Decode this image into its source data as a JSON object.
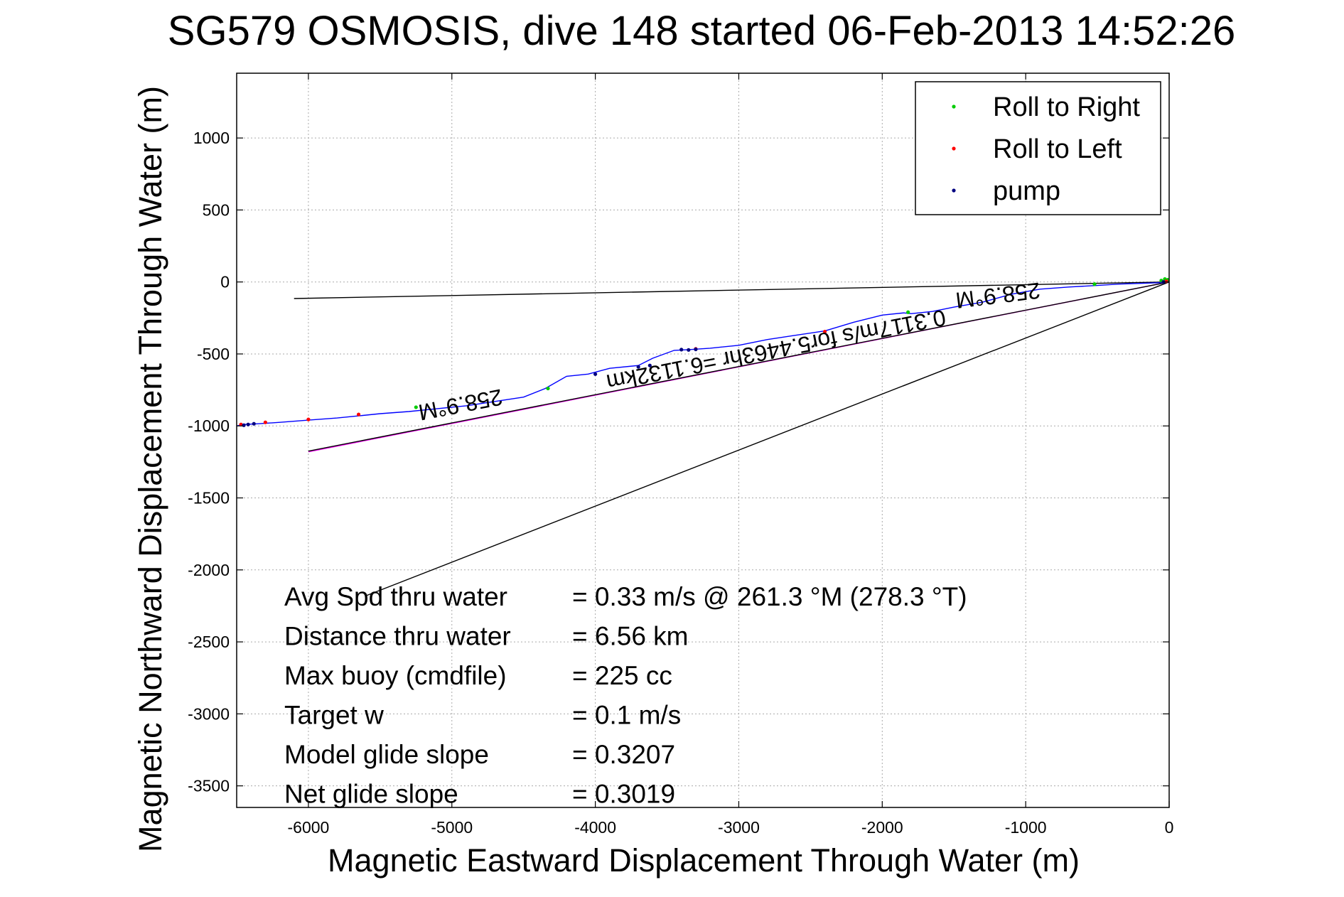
{
  "chart_data": {
    "type": "scatter",
    "title": "SG579 OSMOSIS, dive 148 started 06-Feb-2013 14:52:26",
    "xlabel": "Magnetic Eastward Displacement Through Water (m)",
    "ylabel": "Magnetic Northward Displacement Through Water (m)",
    "xlim": [
      -6500,
      0
    ],
    "ylim": [
      -3650,
      1450
    ],
    "grid": true,
    "x_ticks": [
      -6000,
      -5000,
      -4000,
      -3000,
      -2000,
      -1000,
      0
    ],
    "y_ticks": [
      1000,
      500,
      0,
      -500,
      -1000,
      -1500,
      -2000,
      -2500,
      -3000,
      -3500
    ],
    "legend_position": "top-right",
    "legend": [
      {
        "name": "Roll to Right",
        "color": "#00cc00"
      },
      {
        "name": "Roll to Left",
        "color": "#ff0000"
      },
      {
        "name": "pump",
        "color": "#000080"
      }
    ],
    "series": [
      {
        "name": "track",
        "color": "#0000ff",
        "x": [
          0,
          -60,
          -200,
          -350,
          -520,
          -700,
          -900,
          -1100,
          -1300,
          -1500,
          -1650,
          -1800,
          -1850,
          -2000,
          -2200,
          -2400,
          -2600,
          -2800,
          -3000,
          -3200,
          -3350,
          -3450,
          -3600,
          -3700,
          -3900,
          -4050,
          -4200,
          -4350,
          -4500,
          -4700,
          -4900,
          -5100,
          -5300,
          -5500,
          -5650,
          -5800,
          -6000,
          -6200,
          -6350,
          -6450,
          -6500
        ],
        "y": [
          0,
          -5,
          -10,
          -15,
          -25,
          -35,
          -50,
          -85,
          -140,
          -175,
          -205,
          -220,
          -215,
          -230,
          -280,
          -340,
          -370,
          -400,
          -440,
          -460,
          -470,
          -475,
          -530,
          -580,
          -600,
          -640,
          -655,
          -740,
          -800,
          -830,
          -860,
          -880,
          -900,
          -915,
          -930,
          -945,
          -960,
          -975,
          -985,
          -990,
          -1000
        ]
      },
      {
        "name": "Roll to Right",
        "color": "#00cc00",
        "x": [
          -10,
          -30,
          -55,
          -520,
          -1820,
          -4330,
          -5250
        ],
        "y": [
          15,
          20,
          10,
          -15,
          -210,
          -740,
          -870
        ]
      },
      {
        "name": "Roll to Left",
        "color": "#ff0000",
        "x": [
          -20,
          -2400,
          -3300,
          -5650,
          -6000,
          -6300,
          -6470
        ],
        "y": [
          5,
          -345,
          -465,
          -920,
          -955,
          -975,
          -990
        ]
      },
      {
        "name": "pump",
        "color": "#000080",
        "x": [
          -40,
          -3400,
          -3350,
          -3300,
          -3620,
          -3700,
          -4000,
          -6380,
          -6420,
          -6450
        ],
        "y": [
          0,
          -470,
          -472,
          -468,
          -580,
          -590,
          -640,
          -985,
          -990,
          -995
        ]
      }
    ],
    "lines": [
      {
        "name": "current",
        "color": "#ff00ff",
        "x": [
          0,
          -6000
        ],
        "y": [
          0,
          -1180
        ]
      },
      {
        "name": "current-overlay",
        "color": "#000000",
        "x": [
          0,
          -6000
        ],
        "y": [
          0,
          -1175
        ]
      },
      {
        "name": "heading-upper",
        "color": "#000000",
        "x": [
          0,
          -6100
        ],
        "y": [
          0,
          -115
        ]
      },
      {
        "name": "heading-lower",
        "color": "#000000",
        "x": [
          0,
          -5600
        ],
        "y": [
          0,
          -2180
        ]
      }
    ],
    "annotations": [
      {
        "text": "258.9°M",
        "x": -1200,
        "y": -40,
        "rotation": 173
      },
      {
        "text": "0.3117m/s for5.4463hr =6.1132km",
        "x": -2750,
        "y": -420,
        "rotation": 169
      },
      {
        "text": "258.9°M",
        "x": -4950,
        "y": -800,
        "rotation": 169
      }
    ],
    "stats": [
      {
        "label": "Avg Spd thru water",
        "value": "=  0.33 m/s @ 261.3 °M (278.3 °T)"
      },
      {
        "label": "Distance thru water",
        "value": "=  6.56 km"
      },
      {
        "label": "Max buoy (cmdfile)",
        "value": "= 225 cc"
      },
      {
        "label": "Target w",
        "value": "= 0.1 m/s"
      },
      {
        "label": "Model glide slope",
        "value": "= 0.3207"
      },
      {
        "label": "Net glide slope",
        "value": "= 0.3019"
      }
    ]
  }
}
